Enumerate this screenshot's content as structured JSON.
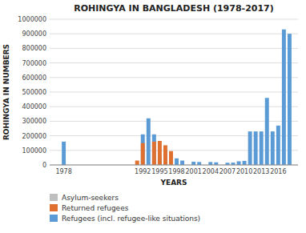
{
  "chart_data": {
    "type": "bar",
    "title": "ROHINGYA IN BANGLADESH (1978-2017)",
    "xlabel": "YEARS",
    "ylabel": "ROHINGYA IN NUMBERS",
    "x": [
      1978,
      1991,
      1992,
      1993,
      1994,
      1995,
      1996,
      1997,
      1998,
      1999,
      2001,
      2002,
      2004,
      2005,
      2007,
      2008,
      2009,
      2010,
      2011,
      2012,
      2013,
      2014,
      2015,
      2016,
      2017,
      2018
    ],
    "series": [
      {
        "name": "Asylum-seekers",
        "color": "#bfbfbf",
        "values": [
          0,
          0,
          0,
          0,
          0,
          0,
          0,
          0,
          0,
          0,
          0,
          0,
          0,
          0,
          0,
          0,
          0,
          0,
          0,
          0,
          0,
          0,
          0,
          0,
          0,
          0
        ]
      },
      {
        "name": "Returned refugees",
        "color": "#e07030",
        "values": [
          0,
          30000,
          150000,
          0,
          160000,
          165000,
          135000,
          95000,
          0,
          0,
          0,
          0,
          0,
          0,
          0,
          0,
          0,
          0,
          0,
          0,
          0,
          0,
          0,
          0,
          0,
          0
        ]
      },
      {
        "name": "Refugees (incl. refugee-like situations)",
        "color": "#5b9bd5",
        "values": [
          160000,
          0,
          210000,
          320000,
          210000,
          50000,
          100000,
          0,
          45000,
          30000,
          22000,
          20000,
          20000,
          18000,
          15000,
          16000,
          25000,
          28000,
          230000,
          230000,
          230000,
          460000,
          230000,
          270000,
          930000,
          900000
        ]
      }
    ],
    "xlim": [
      1975.5,
      2019.5
    ],
    "xticks": [
      1978,
      1992,
      1995,
      1998,
      2001,
      2004,
      2007,
      2010,
      2013,
      2016
    ],
    "ylim": [
      0,
      1000000
    ],
    "yticks": [
      0,
      100000,
      200000,
      300000,
      400000,
      500000,
      600000,
      700000,
      800000,
      900000,
      1000000
    ],
    "grid": true,
    "legend": "bottom"
  }
}
